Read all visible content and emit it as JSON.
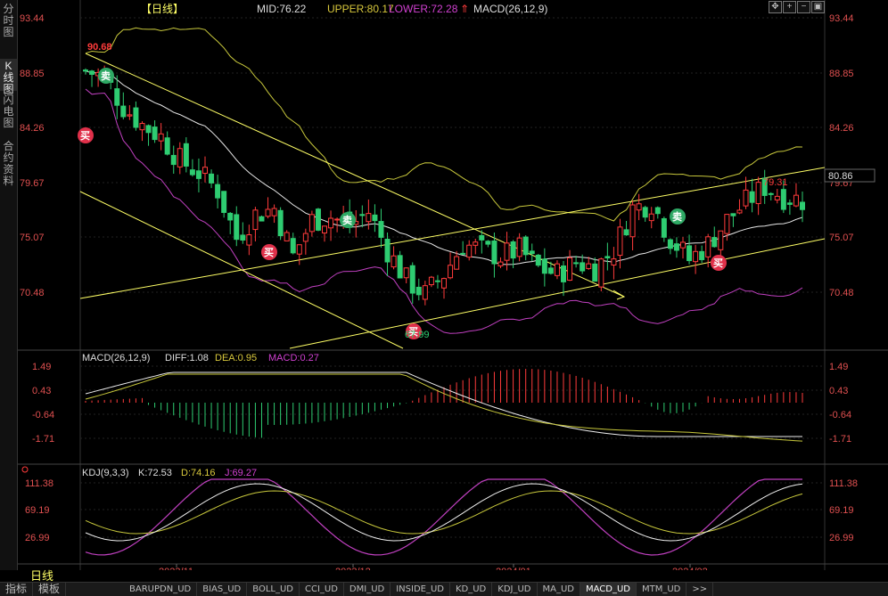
{
  "left_tabs": [
    {
      "label": "分时图",
      "active": false
    },
    {
      "label": "K线图",
      "active": true
    },
    {
      "label": "闪电图",
      "active": false
    },
    {
      "label": "合约资料",
      "active": false
    }
  ],
  "header": {
    "period": "日线",
    "mid": "MID:76.22",
    "upper": "UPPER:80.17",
    "lower": "LOWER:72.28",
    "macd": "MACD(26,12,9)"
  },
  "toolbar": {
    "buttons": [
      "move-icon",
      "plus-icon",
      "minus-icon",
      "restore-icon"
    ]
  },
  "main_panel": {
    "y_labels": [
      "93.44",
      "88.85",
      "84.26",
      "79.67",
      "75.07",
      "70.48"
    ],
    "current_price": "80.86",
    "annotations": {
      "high": "90.68",
      "high2": "79.31",
      "low": "67.99"
    },
    "signals": {
      "buy": "买",
      "sell": "卖"
    }
  },
  "macd_panel": {
    "title": "MACD(26,12,9)",
    "diff": "DIFF:1.08",
    "dea": "DEA:0.95",
    "macd": "MACD:0.27",
    "y_labels": [
      "1.49",
      "0.43",
      "-0.64",
      "-1.71"
    ]
  },
  "kdj_panel": {
    "title": "KDJ(9,3,3)",
    "k": "K:72.53",
    "d": "D:74.16",
    "j": "J:69.27",
    "y_labels": [
      "111.38",
      "69.19",
      "26.99"
    ]
  },
  "x_labels": [
    "2023/11",
    "2023/12",
    "2024/01",
    "2024/02"
  ],
  "period_label": "日线",
  "bottom_tabs": [
    "指标",
    "模板",
    "BARUPDN_UD",
    "BIAS_UD",
    "BOLL_UD",
    "CCI_UD",
    "DMI_UD",
    "INSIDE_UD",
    "KD_UD",
    "KDJ_UD",
    "MA_UD",
    "MACD_UD",
    "MTM_UD",
    ">>"
  ],
  "colors": {
    "up": "#ff3b3b",
    "down": "#2ecc71",
    "boll_upper": "#c8c83c",
    "boll_mid": "#e8e8e8",
    "boll_lower": "#c040c0",
    "trend": "#ffff66",
    "axis_text": "#e05050"
  }
}
